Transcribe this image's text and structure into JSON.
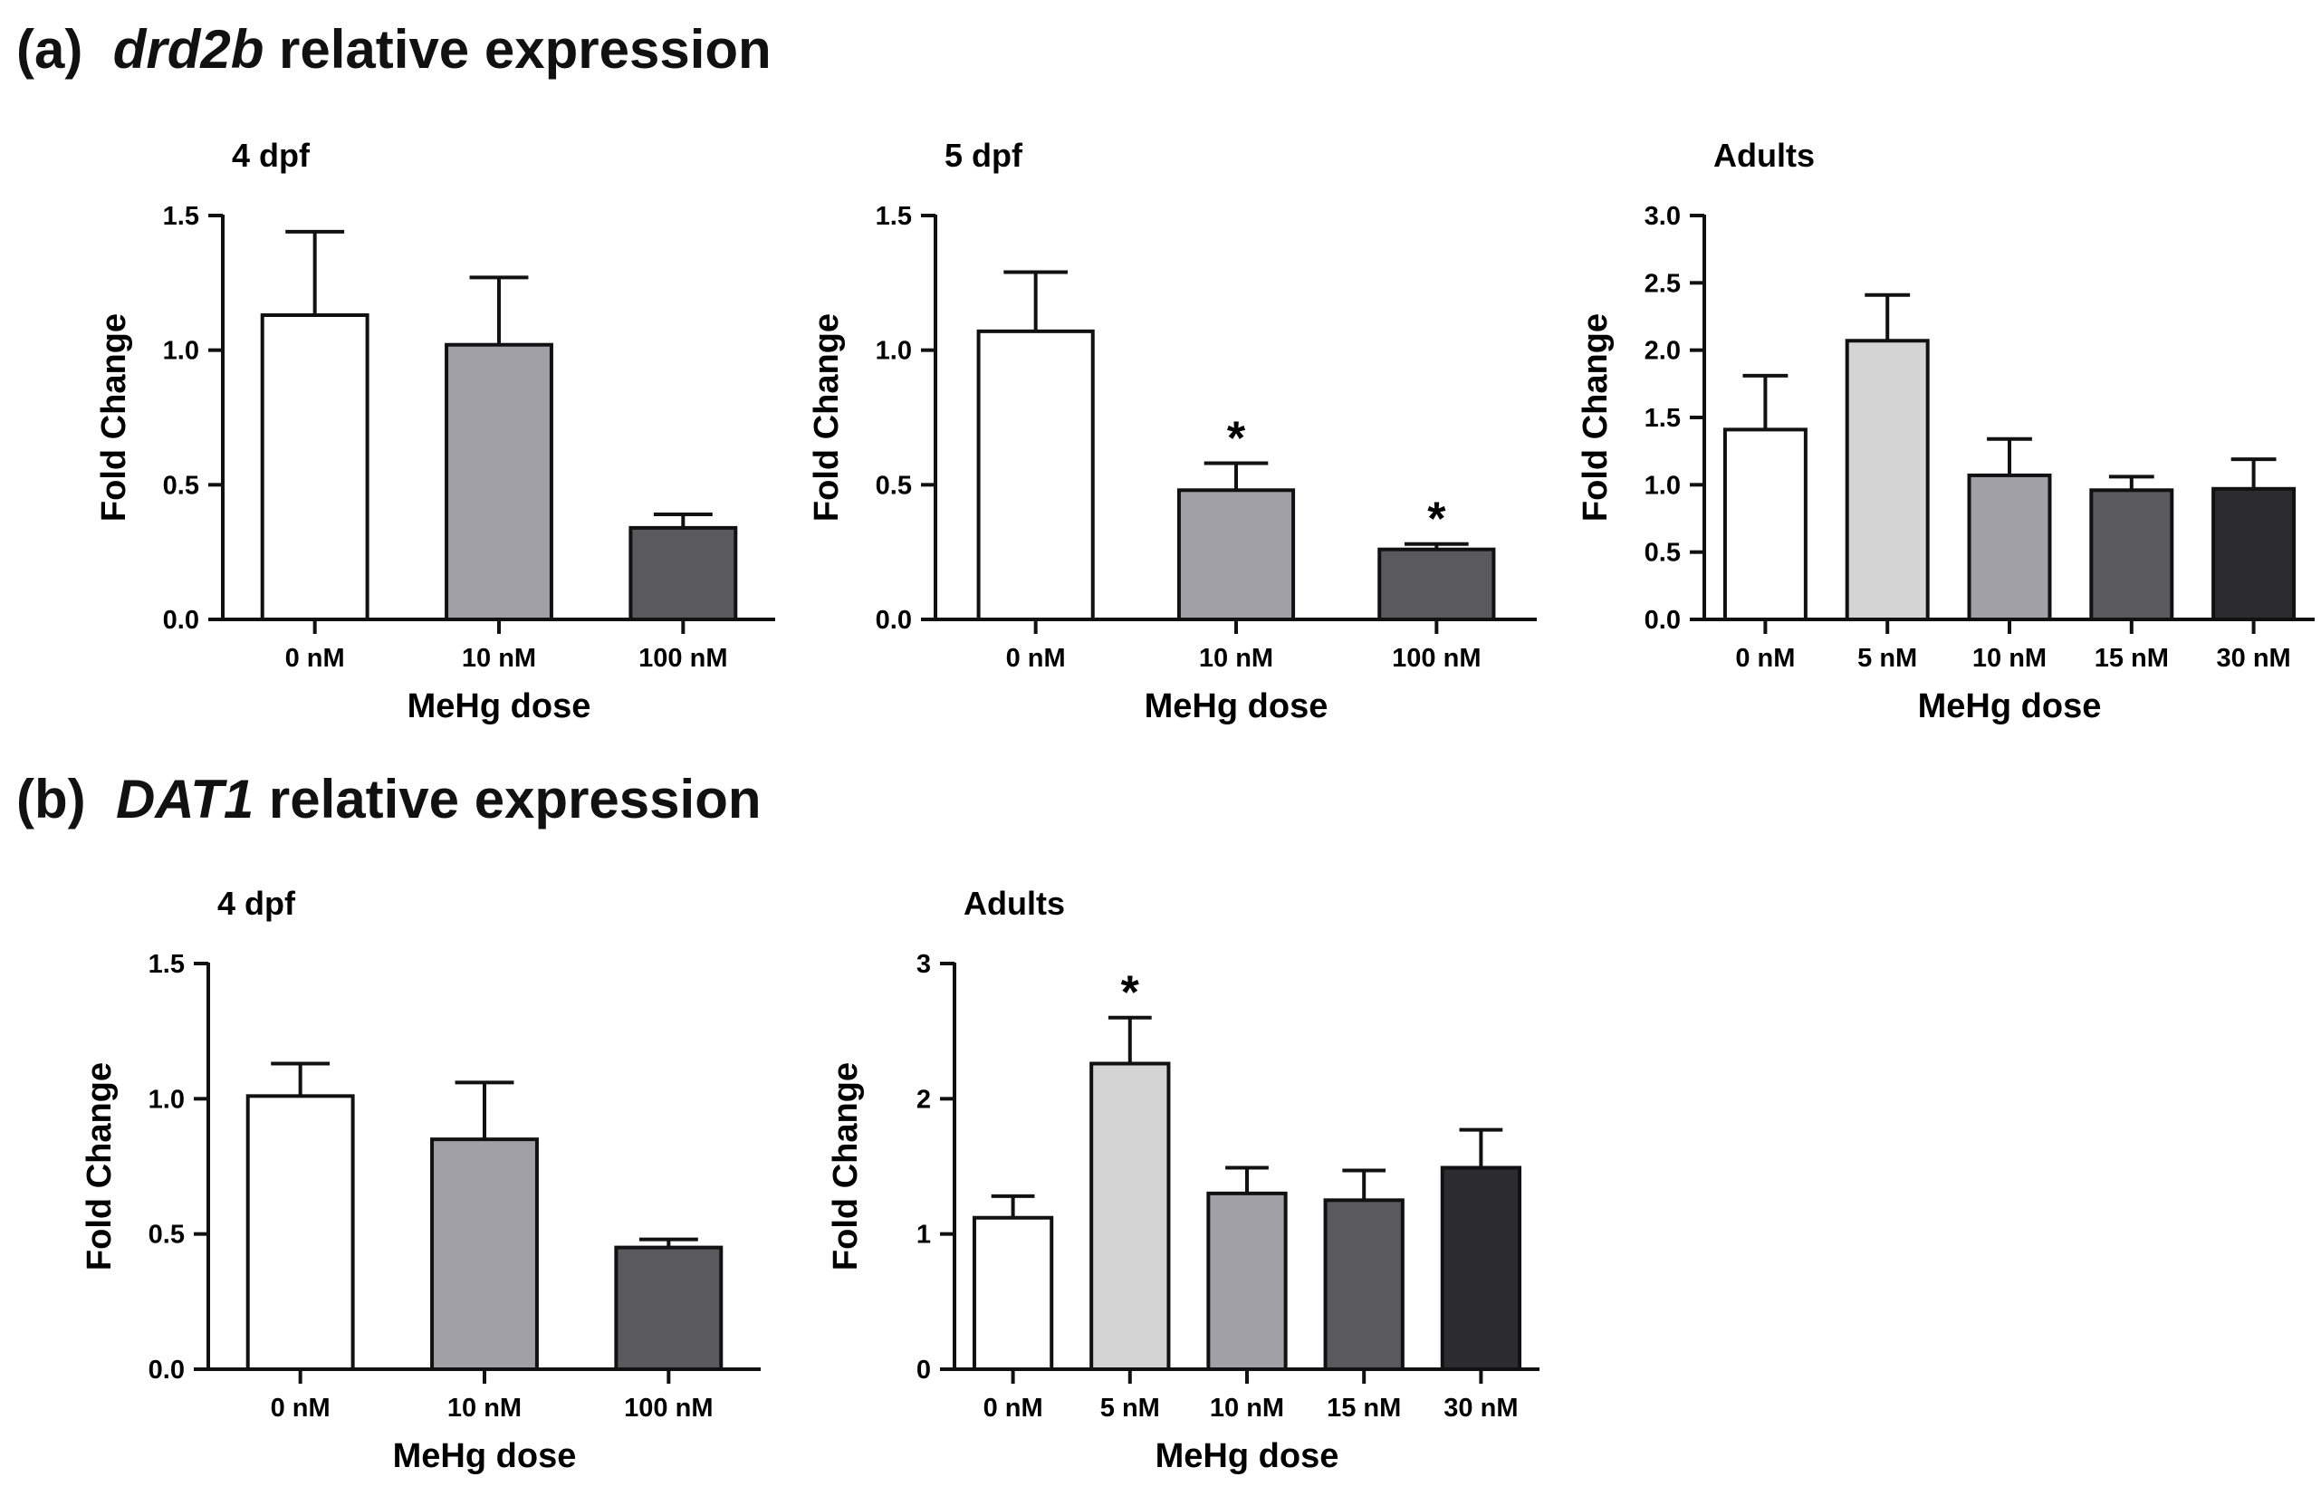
{
  "sections": [
    {
      "label": "(a)",
      "gene": "drd2b",
      "suffix": "relative expression"
    },
    {
      "label": "(b)",
      "gene": "DAT1",
      "suffix": "relative expression"
    }
  ],
  "chart_data": [
    {
      "type": "bar",
      "section": "(a)",
      "title": "4 dpf",
      "categories": [
        "0 nM",
        "10 nM",
        "100 nM"
      ],
      "values": [
        1.13,
        1.02,
        0.34
      ],
      "errors": [
        0.31,
        0.25,
        0.05
      ],
      "colors": [
        "#ffffff",
        "#a0a0a6",
        "#5a5a5c"
      ],
      "significant": [
        false,
        false,
        false
      ],
      "xlabel": "MeHg dose",
      "ylabel": "Fold Change",
      "ylim": [
        0,
        1.5
      ],
      "yticks": [
        "0.0",
        "0.5",
        "1.0",
        "1.5"
      ]
    },
    {
      "type": "bar",
      "section": "(a)",
      "title": "5 dpf",
      "categories": [
        "0 nM",
        "10 nM",
        "100 nM"
      ],
      "values": [
        1.07,
        0.48,
        0.26
      ],
      "errors": [
        0.22,
        0.1,
        0.02
      ],
      "colors": [
        "#ffffff",
        "#a0a0a6",
        "#5a5a5c"
      ],
      "significant": [
        false,
        true,
        true
      ],
      "xlabel": "MeHg dose",
      "ylabel": "Fold Change",
      "ylim": [
        0,
        1.5
      ],
      "yticks": [
        "0.0",
        "0.5",
        "1.0",
        "1.5"
      ]
    },
    {
      "type": "bar",
      "section": "(a)",
      "title": "Adults",
      "categories": [
        "0 nM",
        "5 nM",
        "10 nM",
        "15 nM",
        "30 nM"
      ],
      "values": [
        1.41,
        2.07,
        1.07,
        0.96,
        0.97
      ],
      "errors": [
        0.4,
        0.34,
        0.27,
        0.1,
        0.22
      ],
      "colors": [
        "#ffffff",
        "#d4d4d4",
        "#a0a0a6",
        "#5a5a5c",
        "#2c2c2e"
      ],
      "significant": [
        false,
        false,
        false,
        false,
        false
      ],
      "xlabel": "MeHg dose",
      "ylabel": "Fold Change",
      "ylim": [
        0,
        3.0
      ],
      "yticks": [
        "0.0",
        "0.5",
        "1.0",
        "1.5",
        "2.0",
        "2.5",
        "3.0"
      ]
    },
    {
      "type": "bar",
      "section": "(b)",
      "title": "4 dpf",
      "categories": [
        "0 nM",
        "10 nM",
        "100 nM"
      ],
      "values": [
        1.01,
        0.85,
        0.45
      ],
      "errors": [
        0.12,
        0.21,
        0.03
      ],
      "colors": [
        "#ffffff",
        "#a0a0a6",
        "#5a5a5c"
      ],
      "significant": [
        false,
        false,
        false
      ],
      "xlabel": "MeHg dose",
      "ylabel": "Fold Change",
      "ylim": [
        0,
        1.5
      ],
      "yticks": [
        "0.0",
        "0.5",
        "1.0",
        "1.5"
      ]
    },
    {
      "type": "bar",
      "section": "(b)",
      "title": "Adults",
      "categories": [
        "0 nM",
        "5 nM",
        "10 nM",
        "15 nM",
        "30 nM"
      ],
      "values": [
        1.12,
        2.26,
        1.3,
        1.25,
        1.49
      ],
      "errors": [
        0.16,
        0.34,
        0.19,
        0.22,
        0.28
      ],
      "colors": [
        "#ffffff",
        "#d4d4d4",
        "#a0a0a6",
        "#5a5a5c",
        "#2c2c2e"
      ],
      "significant": [
        false,
        true,
        false,
        false,
        false
      ],
      "xlabel": "MeHg dose",
      "ylabel": "Fold Change",
      "ylim": [
        0,
        3
      ],
      "yticks": [
        "0",
        "1",
        "2",
        "3"
      ]
    }
  ],
  "significance_marker": "*"
}
